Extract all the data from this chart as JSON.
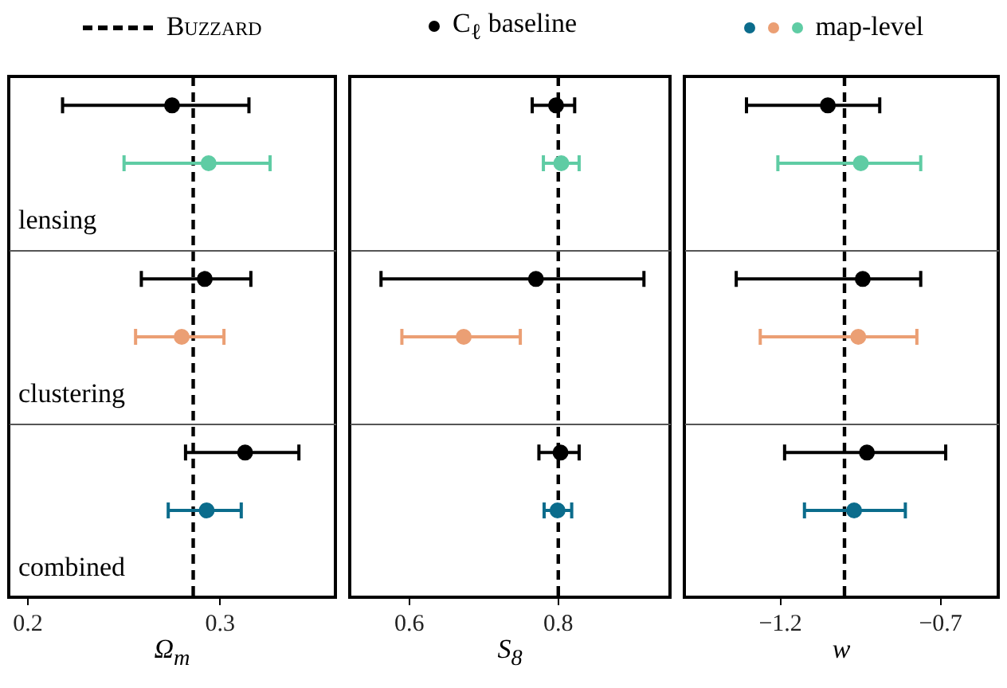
{
  "chart_data": [
    {
      "type": "scatter",
      "orientation": "horizontal",
      "categories": [
        null,
        null,
        "lensing",
        null,
        null,
        "clustering",
        null,
        null,
        "combined"
      ],
      "xlabel": "Ω$_{m}$",
      "xlim": [
        0.19,
        0.36
      ],
      "xticks": [
        0.2,
        0.3
      ],
      "ref_lines": [
        {
          "axis": "x",
          "value": 0.286,
          "label": "Buzzard",
          "color": "#000000",
          "line_style": "dashed"
        }
      ],
      "legend": "top",
      "marker": "circle",
      "series": [
        {
          "name": "C$_{ℓ}$ baseline",
          "color": "#000000",
          "values": [
            0.275,
            null,
            null,
            0.292,
            null,
            null,
            0.313,
            null,
            null
          ],
          "errors": [
            [
              0.218,
              0.315
            ],
            null,
            null,
            [
              0.259,
              0.316
            ],
            null,
            null,
            [
              0.282,
              0.341
            ],
            null,
            null
          ]
        },
        {
          "name": "map-level",
          "colors": [
            null,
            "#5fcca4",
            null,
            null,
            "#eb9f74",
            null,
            null,
            "#0b6c8c",
            null
          ],
          "values": [
            null,
            0.294,
            null,
            null,
            0.28,
            null,
            null,
            0.293,
            null
          ],
          "errors": [
            null,
            [
              0.25,
              0.326
            ],
            null,
            null,
            [
              0.256,
              0.302
            ],
            null,
            null,
            [
              0.273,
              0.311
            ],
            null
          ]
        }
      ]
    },
    {
      "type": "scatter",
      "orientation": "horizontal",
      "categories": [
        null,
        null,
        null,
        null,
        null,
        null,
        null,
        null,
        null
      ],
      "tick_labels": "x",
      "xlabel": "S$_{8}$",
      "xlim": [
        0.52,
        0.95
      ],
      "xticks": [
        0.6,
        0.8
      ],
      "ref_lines": [
        {
          "axis": "x",
          "value": 0.8,
          "color": "#000000",
          "line_style": "dashed"
        }
      ],
      "marker": "circle",
      "series": [
        {
          "color": "#000000",
          "values": [
            0.797,
            null,
            null,
            0.77,
            null,
            null,
            0.803,
            null,
            null
          ],
          "errors": [
            [
              0.765,
              0.822
            ],
            null,
            null,
            [
              0.562,
              0.915
            ],
            null,
            null,
            [
              0.774,
              0.828
            ],
            null,
            null
          ]
        },
        {
          "colors": [
            null,
            "#5fcca4",
            null,
            null,
            "#eb9f74",
            null,
            null,
            "#0b6c8c",
            null
          ],
          "values": [
            null,
            0.804,
            null,
            null,
            0.673,
            null,
            null,
            0.799,
            null
          ],
          "errors": [
            null,
            [
              0.78,
              0.828
            ],
            null,
            null,
            [
              0.59,
              0.749
            ],
            null,
            null,
            [
              0.781,
              0.818
            ],
            null
          ]
        }
      ]
    },
    {
      "type": "scatter",
      "orientation": "horizontal",
      "categories": [
        null,
        null,
        null,
        null,
        null,
        null,
        null,
        null,
        null
      ],
      "tick_labels": "x",
      "xlabel": "w",
      "xlim": [
        -1.5,
        -0.52
      ],
      "xticks": [
        {
          "value": -1.2,
          "label": "−1.2"
        },
        {
          "value": -0.7,
          "label": "−0.7"
        }
      ],
      "ref_lines": [
        {
          "axis": "x",
          "value": -1.0,
          "color": "#000000",
          "line_style": "dashed"
        }
      ],
      "marker": "circle",
      "series": [
        {
          "color": "#000000",
          "values": [
            -1.052,
            null,
            null,
            -0.943,
            null,
            null,
            -0.93,
            null,
            null
          ],
          "errors": [
            [
              -1.306,
              -0.89
            ],
            null,
            null,
            [
              -1.338,
              -0.762
            ],
            null,
            null,
            [
              -1.187,
              -0.684
            ],
            null,
            null
          ]
        },
        {
          "colors": [
            null,
            "#5fcca4",
            null,
            null,
            "#eb9f74",
            null,
            null,
            "#0b6c8c",
            null
          ],
          "values": [
            null,
            -0.949,
            null,
            null,
            -0.957,
            null,
            null,
            -0.97,
            null
          ],
          "errors": [
            null,
            [
              -1.208,
              -0.762
            ],
            null,
            null,
            [
              -1.263,
              -0.774
            ],
            null,
            null,
            [
              -1.125,
              -0.81
            ],
            null
          ]
        }
      ]
    }
  ]
}
